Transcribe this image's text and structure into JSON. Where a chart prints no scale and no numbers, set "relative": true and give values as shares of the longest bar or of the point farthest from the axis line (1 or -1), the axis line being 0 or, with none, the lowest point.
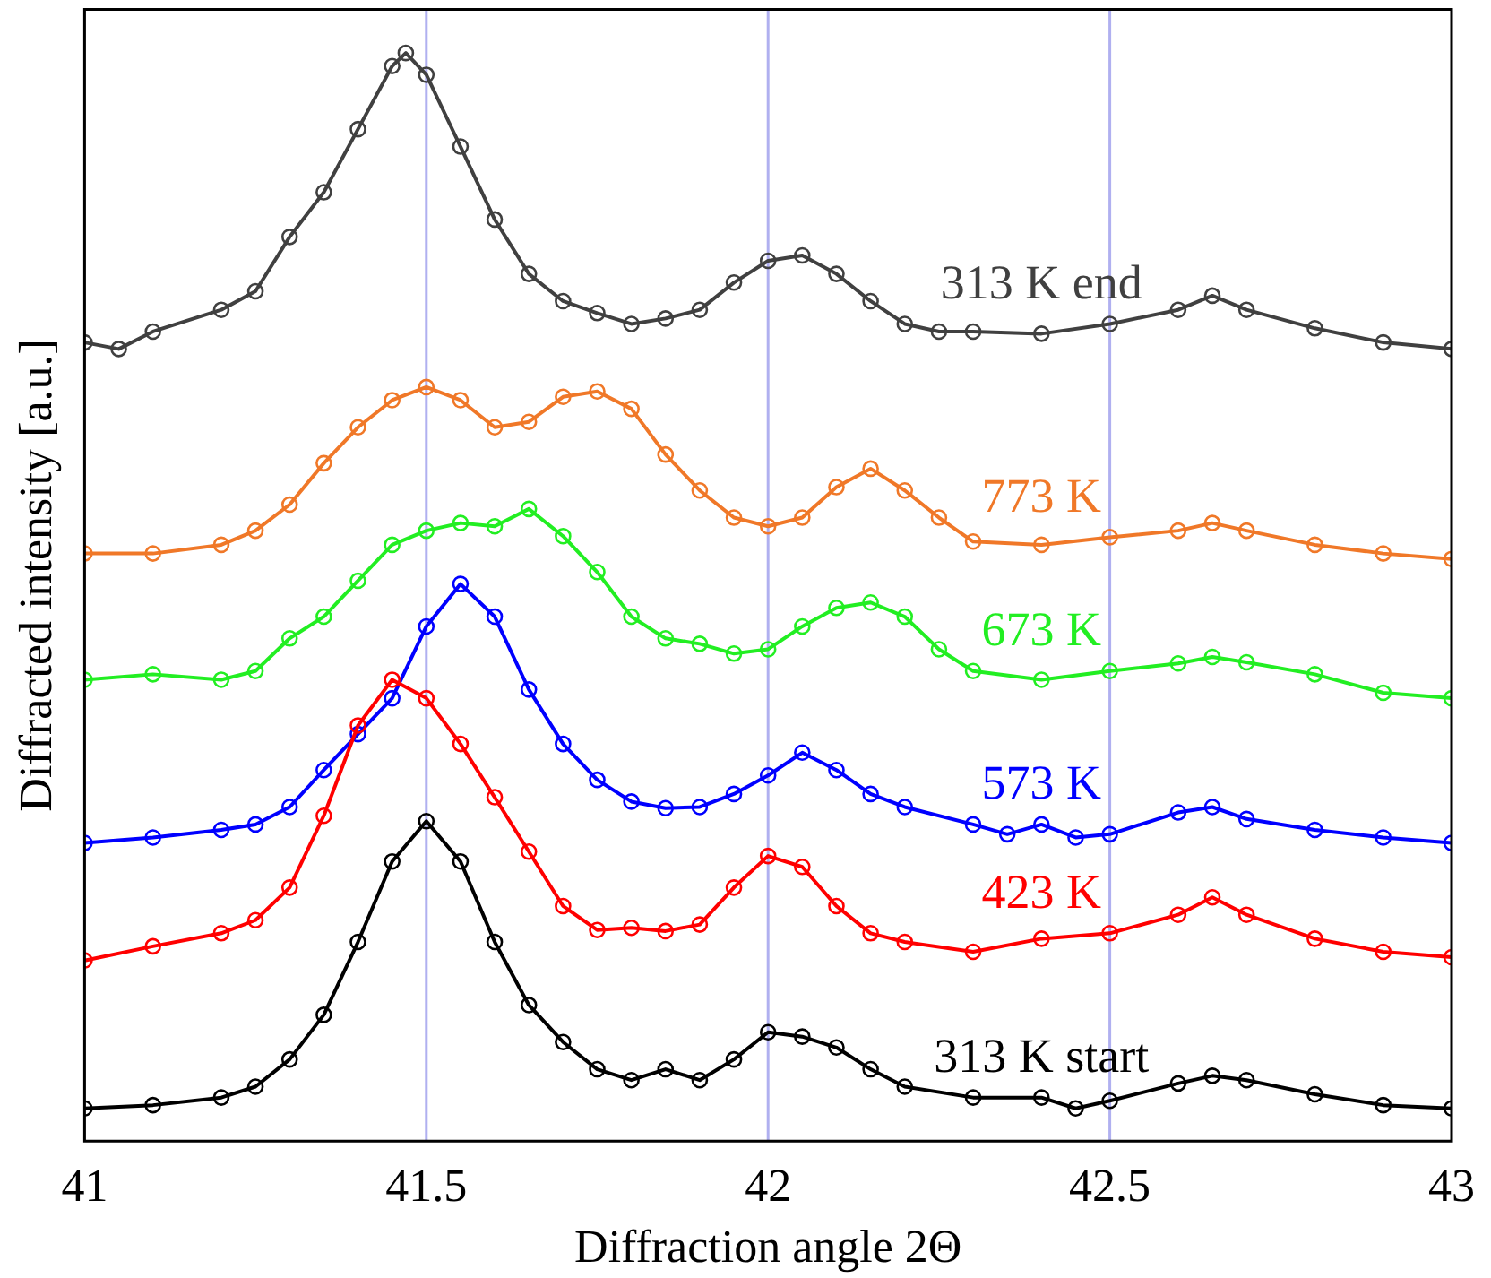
{
  "chart_data": {
    "type": "line",
    "xlabel": "Diffraction angle 2Θ",
    "ylabel": "Diffracted intensity [a.u.]",
    "relative": true,
    "xlim": [
      41,
      43
    ],
    "xticks": [
      41,
      41.5,
      42,
      42.5,
      43
    ],
    "grid": false,
    "legend": false,
    "marker": "circle",
    "line_style": "solid",
    "ref_lines": [
      {
        "axis": "x",
        "value": 41.5,
        "color": "#b0b0f0"
      },
      {
        "axis": "x",
        "value": 42,
        "color": "#b0b0f0"
      },
      {
        "axis": "x",
        "value": 42.5,
        "color": "#b0b0f0"
      }
    ],
    "series": [
      {
        "name": "313 K start",
        "color": "#000000",
        "x": [
          41,
          41.1,
          41.2,
          41.25,
          41.3,
          41.35,
          41.4,
          41.45,
          41.5,
          41.55,
          41.6,
          41.65,
          41.7,
          41.75,
          41.8,
          41.85,
          41.9,
          41.95,
          42,
          42.05,
          42.1,
          42.15,
          42.2,
          42.3,
          42.4,
          42.45,
          42.5,
          42.6,
          42.65,
          42.7,
          42.8,
          42.9,
          43
        ],
        "values": [
          0.03,
          0.033,
          0.04,
          0.05,
          0.075,
          0.116,
          0.183,
          0.257,
          0.294,
          0.257,
          0.183,
          0.125,
          0.091,
          0.066,
          0.056,
          0.066,
          0.056,
          0.075,
          0.1,
          0.096,
          0.086,
          0.066,
          0.05,
          0.04,
          0.04,
          0.03,
          0.037,
          0.053,
          0.06,
          0.056,
          0.043,
          0.033,
          0.03
        ]
      },
      {
        "name": "423 K",
        "color": "#ff0000",
        "x": [
          41,
          41.1,
          41.2,
          41.25,
          41.3,
          41.35,
          41.4,
          41.45,
          41.5,
          41.55,
          41.6,
          41.65,
          41.7,
          41.75,
          41.8,
          41.85,
          41.9,
          41.95,
          42,
          42.05,
          42.1,
          42.15,
          42.2,
          42.3,
          42.4,
          42.5,
          42.6,
          42.65,
          42.7,
          42.8,
          42.9,
          43
        ],
        "values": [
          0.166,
          0.179,
          0.191,
          0.203,
          0.233,
          0.299,
          0.382,
          0.424,
          0.407,
          0.365,
          0.316,
          0.266,
          0.216,
          0.194,
          0.196,
          0.193,
          0.199,
          0.233,
          0.262,
          0.252,
          0.216,
          0.191,
          0.183,
          0.174,
          0.186,
          0.191,
          0.208,
          0.224,
          0.208,
          0.186,
          0.174,
          0.169
        ]
      },
      {
        "name": "573 K",
        "color": "#0000ff",
        "x": [
          41,
          41.1,
          41.2,
          41.25,
          41.3,
          41.35,
          41.4,
          41.45,
          41.5,
          41.55,
          41.6,
          41.65,
          41.7,
          41.75,
          41.8,
          41.85,
          41.9,
          41.95,
          42,
          42.05,
          42.1,
          42.15,
          42.2,
          42.3,
          42.35,
          42.4,
          42.45,
          42.5,
          42.6,
          42.65,
          42.7,
          42.8,
          42.9,
          43
        ],
        "values": [
          0.274,
          0.279,
          0.286,
          0.291,
          0.307,
          0.341,
          0.374,
          0.407,
          0.473,
          0.512,
          0.482,
          0.415,
          0.365,
          0.332,
          0.312,
          0.306,
          0.307,
          0.319,
          0.336,
          0.357,
          0.341,
          0.319,
          0.307,
          0.291,
          0.282,
          0.291,
          0.279,
          0.282,
          0.302,
          0.307,
          0.296,
          0.286,
          0.279,
          0.274
        ]
      },
      {
        "name": "673 K",
        "color": "#22ee22",
        "x": [
          41,
          41.1,
          41.2,
          41.25,
          41.3,
          41.35,
          41.4,
          41.45,
          41.5,
          41.55,
          41.6,
          41.65,
          41.7,
          41.75,
          41.8,
          41.85,
          41.9,
          41.95,
          42,
          42.05,
          42.1,
          42.15,
          42.2,
          42.25,
          42.3,
          42.4,
          42.5,
          42.6,
          42.65,
          42.7,
          42.8,
          42.9,
          43
        ],
        "values": [
          0.424,
          0.429,
          0.424,
          0.432,
          0.462,
          0.482,
          0.515,
          0.548,
          0.561,
          0.568,
          0.565,
          0.581,
          0.556,
          0.523,
          0.482,
          0.462,
          0.457,
          0.448,
          0.452,
          0.473,
          0.49,
          0.495,
          0.482,
          0.452,
          0.432,
          0.424,
          0.432,
          0.439,
          0.445,
          0.44,
          0.429,
          0.412,
          0.407
        ]
      },
      {
        "name": "773 K",
        "color": "#f07828",
        "x": [
          41,
          41.1,
          41.2,
          41.25,
          41.3,
          41.35,
          41.4,
          41.45,
          41.5,
          41.55,
          41.6,
          41.65,
          41.7,
          41.75,
          41.8,
          41.85,
          41.9,
          41.95,
          42,
          42.05,
          42.1,
          42.15,
          42.2,
          42.25,
          42.3,
          42.4,
          42.5,
          42.6,
          42.65,
          42.7,
          42.8,
          42.9,
          43
        ],
        "values": [
          0.54,
          0.54,
          0.548,
          0.561,
          0.585,
          0.623,
          0.656,
          0.681,
          0.693,
          0.681,
          0.656,
          0.661,
          0.684,
          0.689,
          0.673,
          0.631,
          0.598,
          0.573,
          0.565,
          0.573,
          0.601,
          0.618,
          0.598,
          0.573,
          0.551,
          0.548,
          0.555,
          0.561,
          0.568,
          0.561,
          0.548,
          0.54,
          0.535
        ]
      },
      {
        "name": "313 K end",
        "color": "#404040",
        "x": [
          41,
          41.05,
          41.1,
          41.2,
          41.25,
          41.3,
          41.35,
          41.4,
          41.45,
          41.47,
          41.5,
          41.55,
          41.6,
          41.65,
          41.7,
          41.75,
          41.8,
          41.85,
          41.9,
          41.95,
          42,
          42.05,
          42.1,
          42.15,
          42.2,
          42.25,
          42.3,
          42.4,
          42.5,
          42.6,
          42.65,
          42.7,
          42.8,
          42.9,
          43
        ],
        "values": [
          0.734,
          0.728,
          0.744,
          0.764,
          0.781,
          0.831,
          0.872,
          0.93,
          0.988,
          1.0,
          0.98,
          0.914,
          0.847,
          0.797,
          0.772,
          0.761,
          0.751,
          0.756,
          0.764,
          0.789,
          0.809,
          0.814,
          0.797,
          0.772,
          0.751,
          0.744,
          0.744,
          0.742,
          0.751,
          0.764,
          0.777,
          0.764,
          0.747,
          0.734,
          0.728
        ]
      }
    ]
  }
}
